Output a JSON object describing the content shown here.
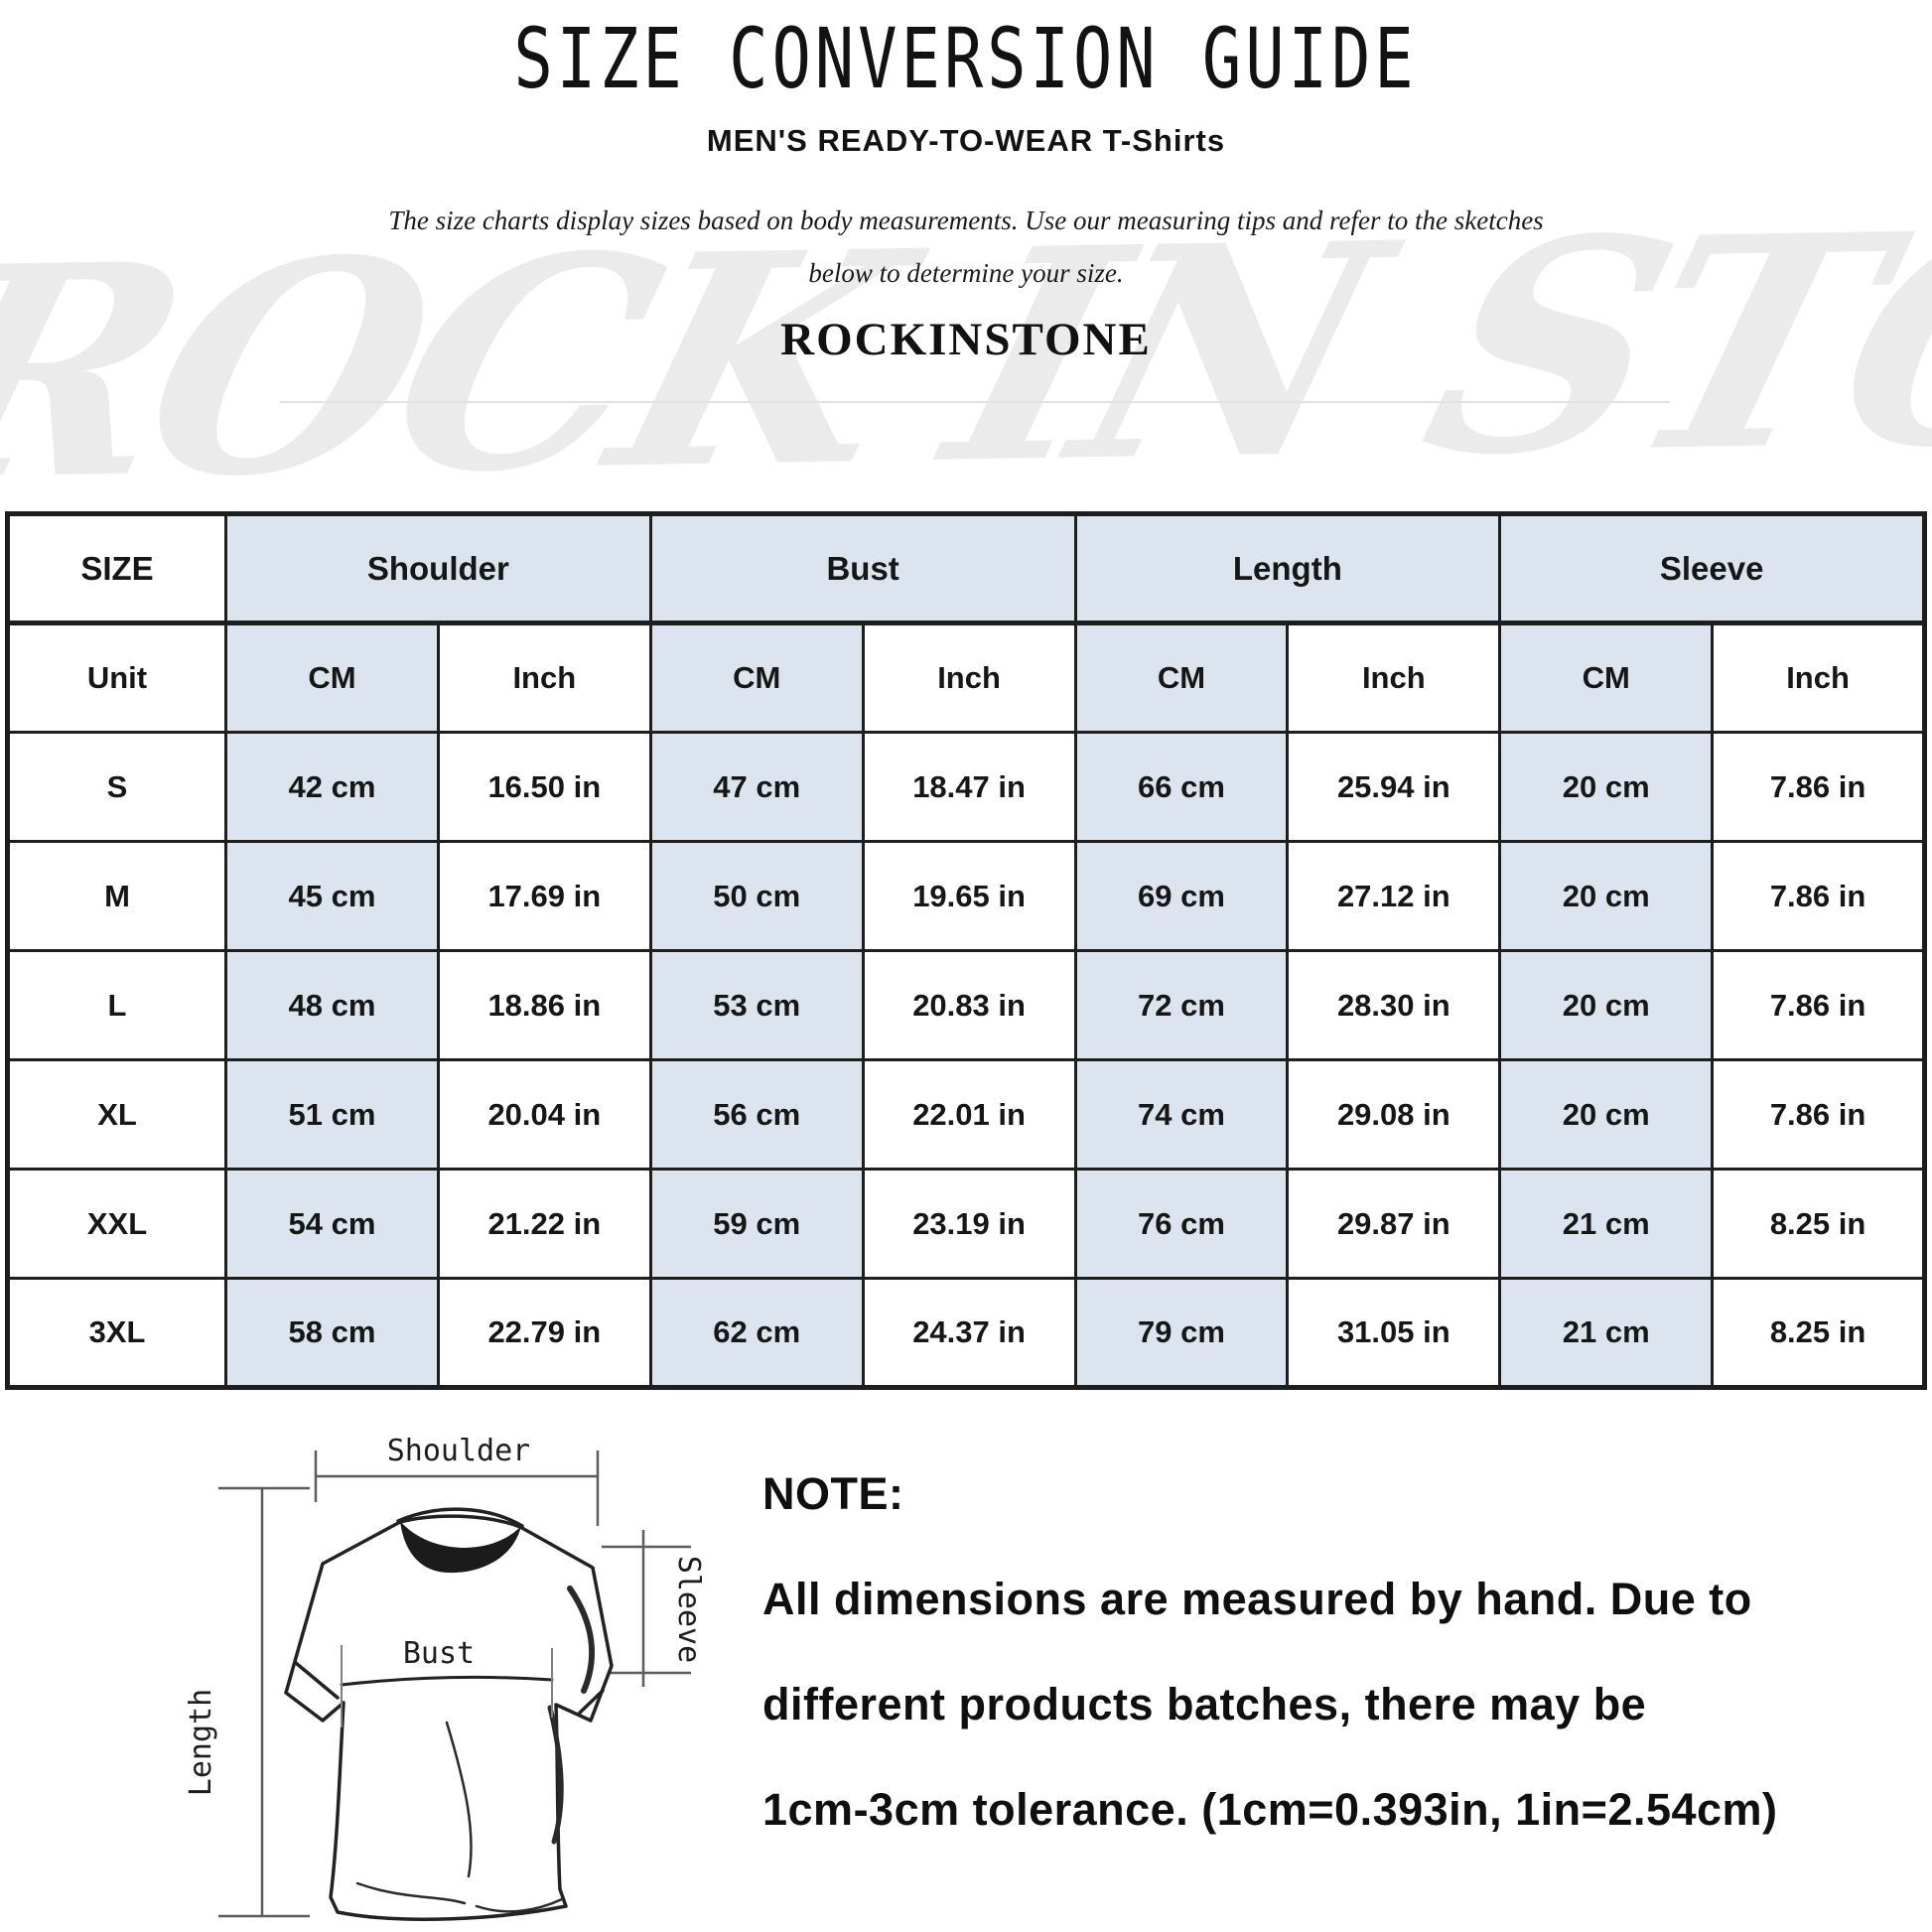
{
  "title": "SIZE CONVERSION GUIDE",
  "subtitle": "MEN'S READY-TO-WEAR T-Shirts",
  "description": {
    "line1": "The size charts display sizes based on body measurements.  Use our measuring tips and refer to the sketches",
    "line2": "below to determine your size."
  },
  "brand": "ROCKINSTONE",
  "watermark": "ROCK IN STONE",
  "colors": {
    "cell_shade": "#dce5ef",
    "table_border": "#1e1e1e",
    "watermark_gray": "#ebebeb"
  },
  "table": {
    "col_groups": [
      "SIZE",
      "Shoulder",
      "Bust",
      "Length",
      "Sleeve"
    ],
    "unit_row": [
      "Unit",
      "CM",
      "Inch",
      "CM",
      "Inch",
      "CM",
      "Inch",
      "CM",
      "Inch"
    ],
    "rows": [
      {
        "size": "S",
        "cells": [
          "42 cm",
          "16.50 in",
          "47 cm",
          "18.47 in",
          "66 cm",
          "25.94 in",
          "20 cm",
          "7.86 in"
        ]
      },
      {
        "size": "M",
        "cells": [
          "45 cm",
          "17.69 in",
          "50 cm",
          "19.65 in",
          "69 cm",
          "27.12 in",
          "20 cm",
          "7.86 in"
        ]
      },
      {
        "size": "L",
        "cells": [
          "48 cm",
          "18.86 in",
          "53 cm",
          "20.83 in",
          "72 cm",
          "28.30 in",
          "20 cm",
          "7.86 in"
        ]
      },
      {
        "size": "XL",
        "cells": [
          "51 cm",
          "20.04 in",
          "56 cm",
          "22.01 in",
          "74 cm",
          "29.08 in",
          "20 cm",
          "7.86 in"
        ]
      },
      {
        "size": "XXL",
        "cells": [
          "54 cm",
          "21.22 in",
          "59 cm",
          "23.19 in",
          "76 cm",
          "29.87 in",
          "21 cm",
          "8.25 in"
        ]
      },
      {
        "size": "3XL",
        "cells": [
          "58 cm",
          "22.79 in",
          "62 cm",
          "24.37 in",
          "79 cm",
          "31.05 in",
          "21 cm",
          "8.25 in"
        ]
      }
    ]
  },
  "sketch": {
    "shoulder_label": "Shoulder",
    "bust_label": "Bust",
    "length_label": "Length",
    "sleeve_label": "Sleeve"
  },
  "note": {
    "heading": "NOTE:",
    "line1": "All dimensions are measured by hand. Due to",
    "line2": "different products batches, there may be",
    "line3": "1cm-3cm tolerance. (1cm=0.393in, 1in=2.54cm)"
  }
}
